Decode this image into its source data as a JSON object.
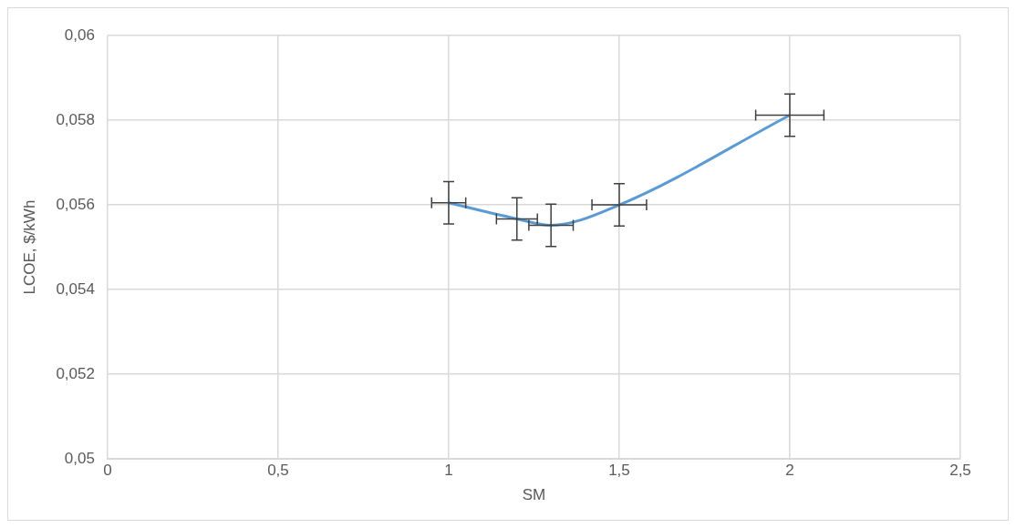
{
  "chart_data": {
    "type": "line",
    "xlabel": "SM",
    "ylabel": "LCOE, $/kWh",
    "x": [
      1,
      1.2,
      1.3,
      1.5,
      2
    ],
    "series": [
      {
        "color": "#5b9bd5",
        "values": [
          0.05605,
          0.05567,
          0.05552,
          0.056,
          0.05812
        ],
        "errors": [
          0.0005,
          0.0005,
          0.0005,
          0.0005,
          0.0005
        ],
        "xerrors": [
          0.05,
          0.06,
          0.065,
          0.08,
          0.1
        ]
      }
    ],
    "xlim": [
      0,
      2.5
    ],
    "xticks": [
      0,
      {
        "value": 0.5,
        "label": "0,5"
      },
      1,
      {
        "value": 1.5,
        "label": "1,5"
      },
      2,
      {
        "value": 2.5,
        "label": "2,5"
      }
    ],
    "ylim": [
      0.05,
      0.06
    ],
    "yticks": [
      {
        "value": 0.05,
        "label": "0,05"
      },
      {
        "value": 0.052,
        "label": "0,052"
      },
      {
        "value": 0.054,
        "label": "0,054"
      },
      {
        "value": 0.056,
        "label": "0,056"
      },
      {
        "value": 0.058,
        "label": "0,058"
      },
      {
        "value": 0.06,
        "label": "0,06"
      }
    ],
    "grid": true,
    "legend": false,
    "marker": "none",
    "line_style": "solid"
  }
}
